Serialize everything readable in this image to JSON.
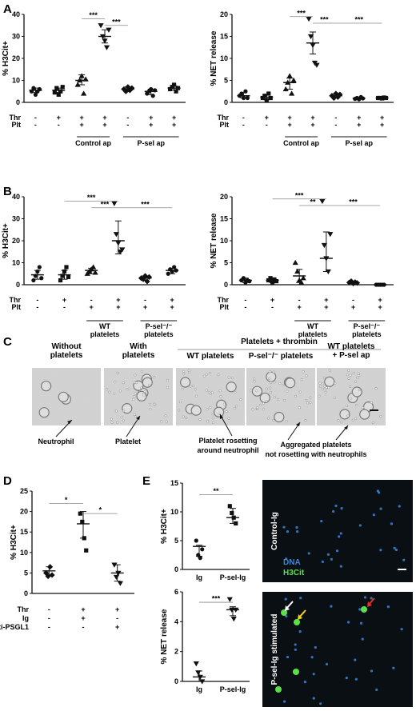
{
  "panel_letters": [
    "A",
    "B",
    "C",
    "D",
    "E"
  ],
  "chart_data": [
    {
      "id": "A1",
      "type": "scatter",
      "ylabel": "% H3Cit+",
      "ylim": [
        0,
        40
      ],
      "yticks": [
        0,
        10,
        20,
        30,
        40
      ],
      "row_labels": [
        "Thr",
        "Plt"
      ],
      "row_values": [
        [
          "-",
          "+",
          "+",
          "+",
          "-",
          "+",
          "+"
        ],
        [
          "-",
          "-",
          "+",
          "+",
          "-",
          "+",
          "+"
        ]
      ],
      "group_labels": [
        {
          "text": "Control ap",
          "from": 2,
          "to": 3
        },
        {
          "text": "P-sel ap",
          "from": 4,
          "to": 6
        }
      ],
      "series": [
        {
          "shape": "circle",
          "points": [
            5,
            6.5,
            3.5,
            5,
            6
          ],
          "mean": 5.5,
          "err": [
            4.5,
            6.5
          ]
        },
        {
          "shape": "square",
          "points": [
            4.5,
            6.5,
            3.5,
            5,
            7
          ],
          "mean": 5.5,
          "err": [
            4.5,
            6.5
          ]
        },
        {
          "shape": "triangle",
          "points": [
            8,
            10,
            12,
            4,
            10.5
          ],
          "mean": 10,
          "err": [
            8,
            12.5
          ]
        },
        {
          "shape": "tri-down",
          "points": [
            35,
            30,
            28,
            25,
            33
          ],
          "mean": 30,
          "err": [
            27,
            33
          ]
        },
        {
          "shape": "diamond",
          "points": [
            6,
            5,
            7,
            5.5,
            6.5
          ],
          "mean": 6,
          "err": [
            5,
            7
          ]
        },
        {
          "shape": "circle-down",
          "points": [
            4,
            5,
            6,
            3,
            5.5
          ],
          "mean": 5,
          "err": [
            3.5,
            6
          ]
        },
        {
          "shape": "square-dark",
          "points": [
            6,
            7,
            8,
            5,
            6.5
          ],
          "mean": 6.5,
          "err": [
            5.5,
            7.5
          ]
        }
      ],
      "significance": [
        {
          "label": "***",
          "from": 2,
          "to": 3,
          "level": 38
        },
        {
          "label": "***",
          "from": 3,
          "to": 4,
          "level": 35
        }
      ]
    },
    {
      "id": "A2",
      "type": "scatter",
      "ylabel": "% NET release",
      "ylim": [
        0,
        20
      ],
      "yticks": [
        0,
        5,
        10,
        15,
        20
      ],
      "row_labels": [
        "Thr",
        "Plt"
      ],
      "row_values": [
        [
          "-",
          "+",
          "+",
          "+",
          "-",
          "+",
          "+"
        ],
        [
          "-",
          "-",
          "+",
          "+",
          "-",
          "+",
          "+"
        ]
      ],
      "group_labels": [
        {
          "text": "Control ap",
          "from": 2,
          "to": 3
        },
        {
          "text": "P-sel ap",
          "from": 4,
          "to": 6
        }
      ],
      "series": [
        {
          "shape": "circle",
          "points": [
            1.5,
            2,
            1,
            2.5,
            1
          ],
          "mean": 1.5,
          "err": [
            1,
            2.2
          ]
        },
        {
          "shape": "square",
          "points": [
            1,
            1.5,
            0.5,
            2,
            1
          ],
          "mean": 1.2,
          "err": [
            0.6,
            1.8
          ]
        },
        {
          "shape": "triangle",
          "points": [
            3,
            4.5,
            6,
            2,
            5
          ],
          "mean": 4.5,
          "err": [
            3,
            5.5
          ]
        },
        {
          "shape": "tri-down",
          "points": [
            19,
            15,
            13,
            9,
            8.5
          ],
          "mean": 13.5,
          "err": [
            11,
            16
          ]
        },
        {
          "shape": "diamond",
          "points": [
            1.5,
            1,
            2,
            1.2,
            1.8
          ],
          "mean": 1.5,
          "err": [
            1.1,
            1.9
          ]
        },
        {
          "shape": "circle-down",
          "points": [
            0.8,
            1,
            0.7,
            1.2,
            0.9
          ],
          "mean": 0.9,
          "err": [
            0.7,
            1.1
          ]
        },
        {
          "shape": "square-dark",
          "points": [
            1,
            1,
            0.9,
            1.1,
            1
          ],
          "mean": 1,
          "err": [
            0.9,
            1.1
          ]
        }
      ],
      "significance": [
        {
          "label": "***",
          "from": 2,
          "to": 3,
          "level": 19.5
        },
        {
          "label": "***",
          "from": 3,
          "to": 4,
          "level": 18
        },
        {
          "label": "***",
          "from": 4,
          "to": 6,
          "level": 18
        }
      ]
    },
    {
      "id": "B1",
      "type": "scatter",
      "ylabel": "% H3Cit+",
      "ylim": [
        0,
        40
      ],
      "yticks": [
        0,
        10,
        20,
        30,
        40
      ],
      "row_labels": [
        "Thr",
        "Plt"
      ],
      "row_values": [
        [
          "-",
          "+",
          "-",
          "+",
          "-",
          "+"
        ],
        [
          "-",
          "-",
          "+",
          "+",
          "+",
          "+"
        ]
      ],
      "group_labels": [
        {
          "text": "WT platelets",
          "from": 2,
          "to": 3
        },
        {
          "text": "P-sel⁻/⁻ platelets",
          "from": 4,
          "to": 5
        }
      ],
      "series": [
        {
          "shape": "circle",
          "points": [
            2,
            4,
            6,
            8,
            3
          ],
          "mean": 4.5,
          "err": [
            2.5,
            6.5
          ]
        },
        {
          "shape": "square",
          "points": [
            2,
            4,
            6,
            8,
            3.5
          ],
          "mean": 4.5,
          "err": [
            2.5,
            6.5
          ]
        },
        {
          "shape": "triangle",
          "points": [
            5,
            6,
            7,
            8,
            5.5
          ],
          "mean": 6.5,
          "err": [
            5,
            7.5
          ]
        },
        {
          "shape": "tri-down",
          "points": [
            37,
            23,
            19,
            15,
            16
          ],
          "mean": 20,
          "err": [
            14,
            29
          ]
        },
        {
          "shape": "diamond",
          "points": [
            3,
            2.5,
            4,
            1.5,
            3.5
          ],
          "mean": 3,
          "err": [
            2,
            4
          ]
        },
        {
          "shape": "circle-down",
          "points": [
            5,
            7,
            6,
            8,
            6.5
          ],
          "mean": 6.5,
          "err": [
            5,
            7.5
          ]
        }
      ],
      "significance": [
        {
          "label": "***",
          "from": 1,
          "to": 3,
          "level": 38
        },
        {
          "label": "***",
          "from": 2,
          "to": 3,
          "level": 35
        },
        {
          "label": "***",
          "from": 3,
          "to": 5,
          "level": 35
        }
      ]
    },
    {
      "id": "B2",
      "type": "scatter",
      "ylabel": "% NET release",
      "ylim": [
        0,
        20
      ],
      "yticks": [
        0,
        5,
        10,
        15,
        20
      ],
      "row_labels": [
        "Thr",
        "Plt"
      ],
      "row_values": [
        [
          "-",
          "+",
          "-",
          "+",
          "-",
          "+"
        ],
        [
          "-",
          "-",
          "+",
          "+",
          "+",
          "+"
        ]
      ],
      "group_labels": [
        {
          "text": "WT platelets",
          "from": 2,
          "to": 3
        },
        {
          "text": "P-sel⁻/⁻ platelets",
          "from": 4,
          "to": 5
        }
      ],
      "series": [
        {
          "shape": "circle",
          "points": [
            1,
            1.5,
            0.5,
            1,
            0.8
          ],
          "mean": 1,
          "err": [
            0.5,
            1.5
          ]
        },
        {
          "shape": "square",
          "points": [
            1,
            1.5,
            0.5,
            1.2,
            0.8
          ],
          "mean": 1,
          "err": [
            0.5,
            1.5
          ]
        },
        {
          "shape": "triangle",
          "points": [
            5,
            3,
            1,
            0.5,
            1.5
          ],
          "mean": 2,
          "err": [
            0.5,
            3.5
          ]
        },
        {
          "shape": "tri-down",
          "points": [
            19,
            9,
            6,
            3,
            11.5
          ],
          "mean": 6,
          "err": [
            3,
            12
          ]
        },
        {
          "shape": "diamond",
          "points": [
            0.5,
            0.8,
            0.3,
            0.6,
            0.4
          ],
          "mean": 0.5,
          "err": [
            0.3,
            0.7
          ]
        },
        {
          "shape": "circle-down",
          "points": [
            0,
            0,
            0,
            0,
            0
          ],
          "mean": 0,
          "err": [
            0,
            0
          ]
        }
      ],
      "significance": [
        {
          "label": "***",
          "from": 1,
          "to": 3,
          "level": 19.5
        },
        {
          "label": "**",
          "from": 2,
          "to": 3,
          "level": 18
        },
        {
          "label": "***",
          "from": 3,
          "to": 5,
          "level": 18
        }
      ]
    },
    {
      "id": "D",
      "type": "scatter",
      "ylabel": "% H3Cit+",
      "ylim": [
        0,
        25
      ],
      "yticks": [
        0,
        5,
        10,
        15,
        20,
        25
      ],
      "row_labels": [
        "Thr",
        "Ig",
        "Anti-PSGL1"
      ],
      "row_values": [
        [
          "-",
          "+",
          "+"
        ],
        [
          "-",
          "+",
          "-"
        ],
        [
          "-",
          "-",
          "+"
        ]
      ],
      "group_labels": [],
      "series": [
        {
          "shape": "diamond",
          "points": [
            5,
            4.2,
            6.5,
            4.5
          ],
          "mean": 5.5,
          "err": [
            4.5,
            6.5
          ]
        },
        {
          "shape": "square",
          "points": [
            19.5,
            17.5,
            13.5,
            10.5
          ],
          "mean": 17,
          "err": [
            13.5,
            20
          ]
        },
        {
          "shape": "tri-down",
          "points": [
            7,
            4,
            5,
            2.5
          ],
          "mean": 5,
          "err": [
            3,
            7
          ]
        }
      ],
      "significance": [
        {
          "label": "*",
          "from": 0,
          "to": 1,
          "level": 22
        },
        {
          "label": "*",
          "from": 1,
          "to": 2,
          "level": 19.5
        }
      ]
    },
    {
      "id": "E1",
      "type": "scatter",
      "ylabel": "% H3Cit+",
      "ylim": [
        0,
        15
      ],
      "yticks": [
        0,
        5,
        10,
        15
      ],
      "categories": [
        "Ig",
        "P-sel-Ig"
      ],
      "series": [
        {
          "shape": "circle",
          "points": [
            5,
            2.5,
            2,
            3.5
          ],
          "mean": 4,
          "err": [
            2.3,
            4.2
          ]
        },
        {
          "shape": "square",
          "points": [
            11,
            9.8,
            9,
            8
          ],
          "mean": 9,
          "err": [
            8,
            10.6
          ]
        }
      ],
      "significance": [
        {
          "label": "**",
          "from": 0,
          "to": 1,
          "level": 13
        }
      ]
    },
    {
      "id": "E2",
      "type": "scatter",
      "ylabel": "% NET release",
      "ylim": [
        0,
        6
      ],
      "yticks": [
        0,
        2,
        4,
        6
      ],
      "categories": [
        "Ig",
        "P-sel-Ig"
      ],
      "series": [
        {
          "shape": "tri-down",
          "points": [
            1.2,
            0.6,
            0.3,
            0
          ],
          "mean": 0.3,
          "err": [
            0,
            0.7
          ]
        },
        {
          "shape": "tri-down",
          "points": [
            5.5,
            4.8,
            4.2,
            4.8
          ],
          "mean": 4.8,
          "err": [
            4.4,
            5
          ]
        }
      ],
      "significance": [
        {
          "label": "***",
          "from": 0,
          "to": 1,
          "level": 5.3
        }
      ]
    }
  ],
  "micrographs": {
    "header": "Platelets + thrombin",
    "columns": [
      {
        "title_lines": [
          "Without",
          "platelets"
        ]
      },
      {
        "title_lines": [
          "With",
          "platelets"
        ]
      },
      {
        "title_lines": [
          "WT platelets"
        ]
      },
      {
        "title_lines": [
          "P-sel⁻/⁻ platelets"
        ]
      },
      {
        "title_lines": [
          "WT platelets",
          "+ P-sel ap"
        ]
      }
    ],
    "annotations": [
      "Neutrophil",
      "Platelet",
      "Platelet rosetting",
      "around neutrophil",
      "Aggregated platelets",
      "not rosetting with neutrophils"
    ]
  },
  "fluorescence": {
    "top_label": "Control-Ig",
    "bottom_label": "P-sel-Ig stimulated",
    "legend": [
      {
        "text": "DNA",
        "color": "#3a86d9"
      },
      {
        "text": "H3Cit",
        "color": "#5ae04a"
      }
    ],
    "arrow_colors": [
      "#ffffff",
      "#f4d21a",
      "#e6302a"
    ]
  }
}
